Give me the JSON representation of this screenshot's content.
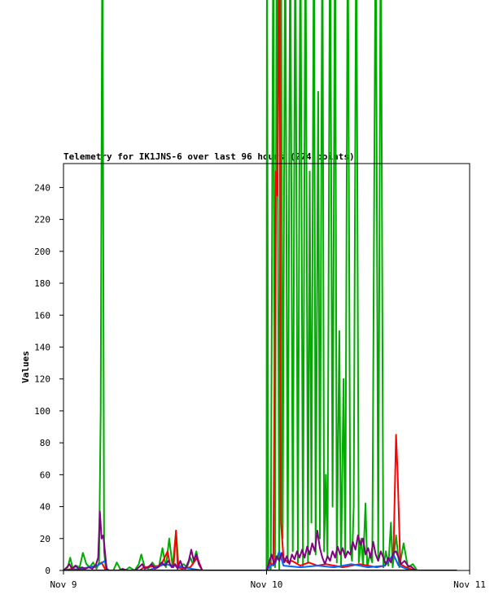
{
  "chart_data": {
    "type": "line",
    "title": "Telemetry for IK1JNS-6 over last 96 hours (274 points)",
    "ylabel": "Values",
    "xlabel": "",
    "x_ticks": [
      "Nov 9",
      "Nov 10",
      "Nov 11"
    ],
    "xlim": [
      0,
      48
    ],
    "ylim": [
      0,
      255
    ],
    "y_ticks": [
      0,
      20,
      40,
      60,
      80,
      100,
      120,
      140,
      160,
      180,
      200,
      220,
      240
    ],
    "grid": false,
    "legend": "none",
    "series": [
      {
        "color": "#00aa00",
        "points": [
          [
            0,
            0
          ],
          [
            0.5,
            2
          ],
          [
            0.8,
            8
          ],
          [
            1.1,
            1
          ],
          [
            1.5,
            3
          ],
          [
            1.9,
            2
          ],
          [
            2.3,
            11
          ],
          [
            2.7,
            4
          ],
          [
            3.1,
            2
          ],
          [
            3.5,
            5
          ],
          [
            3.9,
            1
          ],
          [
            4.2,
            5
          ],
          [
            4.4,
            100
          ],
          [
            4.6,
            420
          ],
          [
            4.8,
            12
          ],
          [
            5.0,
            1
          ],
          [
            5.4,
            0
          ],
          [
            5.9,
            0
          ],
          [
            6.3,
            5
          ],
          [
            6.8,
            0
          ],
          [
            7.3,
            0
          ],
          [
            7.8,
            2
          ],
          [
            8.4,
            0
          ],
          [
            8.9,
            4
          ],
          [
            9.2,
            10
          ],
          [
            9.6,
            2
          ],
          [
            10.0,
            1
          ],
          [
            10.5,
            5
          ],
          [
            10.9,
            2
          ],
          [
            11.3,
            3
          ],
          [
            11.7,
            14
          ],
          [
            12.1,
            2
          ],
          [
            12.5,
            20
          ],
          [
            12.9,
            2
          ],
          [
            13.3,
            25
          ],
          [
            13.6,
            2
          ],
          [
            13.9,
            3
          ],
          [
            14.2,
            4
          ],
          [
            14.6,
            2
          ],
          [
            15.0,
            8
          ],
          [
            15.3,
            4
          ],
          [
            15.7,
            12
          ],
          [
            16.0,
            4
          ],
          [
            16.4,
            0
          ],
          [
            17.0,
            0
          ],
          [
            18.0,
            0
          ],
          [
            20.0,
            0
          ],
          [
            22.0,
            0
          ],
          [
            24.0,
            0
          ],
          [
            24.05,
            420
          ],
          [
            24.2,
            4
          ],
          [
            24.5,
            0
          ],
          [
            24.8,
            420
          ],
          [
            25.0,
            2
          ],
          [
            25.2,
            420
          ],
          [
            25.5,
            0
          ],
          [
            25.7,
            420
          ],
          [
            25.9,
            20
          ],
          [
            26.2,
            420
          ],
          [
            26.5,
            5
          ],
          [
            26.8,
            420
          ],
          [
            27.1,
            12
          ],
          [
            27.4,
            420
          ],
          [
            27.7,
            5
          ],
          [
            28.0,
            420
          ],
          [
            28.3,
            3
          ],
          [
            28.6,
            420
          ],
          [
            28.9,
            5
          ],
          [
            29.1,
            250
          ],
          [
            29.3,
            30
          ],
          [
            29.6,
            420
          ],
          [
            29.8,
            10
          ],
          [
            30.1,
            300
          ],
          [
            30.3,
            20
          ],
          [
            30.6,
            420
          ],
          [
            30.8,
            12
          ],
          [
            31.0,
            60
          ],
          [
            31.2,
            8
          ],
          [
            31.5,
            420
          ],
          [
            31.8,
            40
          ],
          [
            32.1,
            420
          ],
          [
            32.3,
            5
          ],
          [
            32.6,
            150
          ],
          [
            32.8,
            3
          ],
          [
            33.1,
            120
          ],
          [
            33.3,
            8
          ],
          [
            33.6,
            420
          ],
          [
            33.9,
            14
          ],
          [
            34.1,
            6
          ],
          [
            34.3,
            40
          ],
          [
            34.6,
            420
          ],
          [
            34.9,
            5
          ],
          [
            35.2,
            20
          ],
          [
            35.4,
            3
          ],
          [
            35.7,
            42
          ],
          [
            35.9,
            2
          ],
          [
            36.2,
            10
          ],
          [
            36.5,
            5
          ],
          [
            36.9,
            420
          ],
          [
            37.2,
            8
          ],
          [
            37.5,
            420
          ],
          [
            37.8,
            2
          ],
          [
            38.1,
            12
          ],
          [
            38.4,
            3
          ],
          [
            38.7,
            30
          ],
          [
            38.9,
            2
          ],
          [
            39.3,
            22
          ],
          [
            39.7,
            2
          ],
          [
            40.2,
            17
          ],
          [
            40.7,
            2
          ],
          [
            41.3,
            4
          ],
          [
            41.8,
            0
          ],
          [
            46.5,
            0
          ]
        ]
      },
      {
        "color": "#ff0000",
        "points": [
          [
            0,
            0
          ],
          [
            1.0,
            1
          ],
          [
            2.0,
            0
          ],
          [
            3.0,
            2
          ],
          [
            4.0,
            3
          ],
          [
            4.5,
            5
          ],
          [
            5.0,
            0
          ],
          [
            9.0,
            0
          ],
          [
            9.5,
            2
          ],
          [
            11.5,
            3
          ],
          [
            12.3,
            12
          ],
          [
            12.6,
            3
          ],
          [
            13.0,
            2
          ],
          [
            13.3,
            25
          ],
          [
            13.5,
            2
          ],
          [
            14.0,
            1
          ],
          [
            15.0,
            2
          ],
          [
            15.8,
            8
          ],
          [
            16.4,
            0
          ],
          [
            24.0,
            0
          ],
          [
            24.4,
            5
          ],
          [
            24.8,
            3
          ],
          [
            25.1,
            250
          ],
          [
            25.3,
            235
          ],
          [
            25.5,
            420
          ],
          [
            25.7,
            30
          ],
          [
            26.0,
            8
          ],
          [
            26.5,
            5
          ],
          [
            27.0,
            6
          ],
          [
            28.0,
            3
          ],
          [
            29.0,
            5
          ],
          [
            30.0,
            3
          ],
          [
            31.0,
            4
          ],
          [
            32.0,
            3
          ],
          [
            33.0,
            2
          ],
          [
            34.0,
            3
          ],
          [
            35.0,
            4
          ],
          [
            36.0,
            3
          ],
          [
            37.0,
            2
          ],
          [
            38.0,
            3
          ],
          [
            39.0,
            10
          ],
          [
            39.3,
            85
          ],
          [
            39.5,
            60
          ],
          [
            39.8,
            4
          ],
          [
            40.5,
            2
          ],
          [
            41.5,
            0
          ],
          [
            46.5,
            0
          ]
        ]
      },
      {
        "color": "#0066ff",
        "points": [
          [
            0,
            0
          ],
          [
            2.0,
            1
          ],
          [
            4.0,
            3
          ],
          [
            4.9,
            6
          ],
          [
            5.2,
            0
          ],
          [
            10,
            0
          ],
          [
            12,
            4
          ],
          [
            14,
            2
          ],
          [
            16.4,
            0
          ],
          [
            24.0,
            0
          ],
          [
            24.5,
            3
          ],
          [
            25,
            4
          ],
          [
            25.5,
            12
          ],
          [
            26,
            3
          ],
          [
            28,
            2
          ],
          [
            30,
            3
          ],
          [
            32,
            2
          ],
          [
            34,
            4
          ],
          [
            36,
            2
          ],
          [
            38,
            3
          ],
          [
            39,
            10
          ],
          [
            39.6,
            3
          ],
          [
            41,
            0
          ],
          [
            46.5,
            0
          ]
        ]
      },
      {
        "color": "#800080",
        "points": [
          [
            0,
            0
          ],
          [
            0.4,
            2
          ],
          [
            0.7,
            4
          ],
          [
            1.0,
            1
          ],
          [
            1.4,
            3
          ],
          [
            1.8,
            1
          ],
          [
            2.2,
            2
          ],
          [
            2.6,
            1
          ],
          [
            3.0,
            2
          ],
          [
            3.4,
            1
          ],
          [
            3.8,
            3
          ],
          [
            4.1,
            8
          ],
          [
            4.3,
            37
          ],
          [
            4.5,
            20
          ],
          [
            4.7,
            22
          ],
          [
            4.9,
            12
          ],
          [
            5.1,
            1
          ],
          [
            5.4,
            0
          ],
          [
            6.5,
            0
          ],
          [
            7.0,
            1
          ],
          [
            7.5,
            0
          ],
          [
            8.5,
            0
          ],
          [
            8.9,
            2
          ],
          [
            9.3,
            4
          ],
          [
            9.6,
            1
          ],
          [
            10.0,
            2
          ],
          [
            10.4,
            4
          ],
          [
            10.8,
            1
          ],
          [
            11.2,
            2
          ],
          [
            11.6,
            5
          ],
          [
            12.0,
            3
          ],
          [
            12.4,
            6
          ],
          [
            12.8,
            2
          ],
          [
            13.2,
            4
          ],
          [
            13.5,
            1
          ],
          [
            13.8,
            6
          ],
          [
            14.1,
            2
          ],
          [
            14.4,
            1
          ],
          [
            14.8,
            6
          ],
          [
            15.1,
            13
          ],
          [
            15.4,
            6
          ],
          [
            15.7,
            10
          ],
          [
            16.0,
            4
          ],
          [
            16.4,
            0
          ],
          [
            24.0,
            0
          ],
          [
            24.3,
            5
          ],
          [
            24.6,
            10
          ],
          [
            24.9,
            4
          ],
          [
            25.2,
            9
          ],
          [
            25.5,
            6
          ],
          [
            25.8,
            11
          ],
          [
            26.1,
            5
          ],
          [
            26.4,
            9
          ],
          [
            26.7,
            4
          ],
          [
            27.0,
            10
          ],
          [
            27.3,
            7
          ],
          [
            27.6,
            12
          ],
          [
            27.9,
            8
          ],
          [
            28.2,
            13
          ],
          [
            28.5,
            8
          ],
          [
            28.8,
            15
          ],
          [
            29.1,
            10
          ],
          [
            29.4,
            17
          ],
          [
            29.7,
            12
          ],
          [
            30.0,
            25
          ],
          [
            30.3,
            14
          ],
          [
            30.6,
            8
          ],
          [
            30.9,
            4
          ],
          [
            31.2,
            9
          ],
          [
            31.5,
            6
          ],
          [
            31.8,
            12
          ],
          [
            32.1,
            8
          ],
          [
            32.4,
            15
          ],
          [
            32.7,
            10
          ],
          [
            33.0,
            14
          ],
          [
            33.3,
            8
          ],
          [
            33.6,
            12
          ],
          [
            33.9,
            10
          ],
          [
            34.2,
            18
          ],
          [
            34.5,
            13
          ],
          [
            34.8,
            22
          ],
          [
            35.1,
            16
          ],
          [
            35.4,
            20
          ],
          [
            35.7,
            10
          ],
          [
            36.0,
            14
          ],
          [
            36.3,
            8
          ],
          [
            36.6,
            18
          ],
          [
            36.9,
            10
          ],
          [
            37.2,
            6
          ],
          [
            37.5,
            12
          ],
          [
            37.8,
            8
          ],
          [
            38.1,
            4
          ],
          [
            38.4,
            8
          ],
          [
            38.7,
            5
          ],
          [
            39.0,
            11
          ],
          [
            39.3,
            12
          ],
          [
            39.6,
            8
          ],
          [
            39.9,
            4
          ],
          [
            40.3,
            6
          ],
          [
            40.7,
            3
          ],
          [
            41.2,
            2
          ],
          [
            41.6,
            0
          ],
          [
            46.5,
            0
          ]
        ]
      },
      {
        "color": "#000000",
        "points": [
          [
            0,
            0
          ],
          [
            46.5,
            0
          ]
        ]
      }
    ]
  }
}
